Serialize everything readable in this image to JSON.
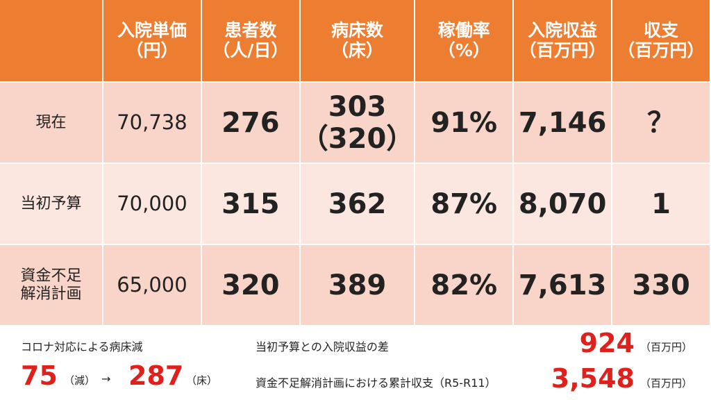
{
  "table": {
    "columns": [
      {
        "name": "入院単価",
        "unit": "（円）"
      },
      {
        "name": "患者数",
        "unit": "（人/日）"
      },
      {
        "name": "病床数",
        "unit": "（床）"
      },
      {
        "name": "稼働率",
        "unit": "（%）"
      },
      {
        "name": "入院収益",
        "unit": "（百万円）"
      },
      {
        "name": "収支",
        "unit": "（百万円）"
      }
    ],
    "rows": [
      {
        "label": [
          "現在"
        ],
        "cells": [
          [
            "70,738"
          ],
          [
            "276"
          ],
          [
            "303",
            "（320）"
          ],
          [
            "91%"
          ],
          [
            "7,146"
          ],
          [
            "？"
          ]
        ]
      },
      {
        "label": [
          "当初予算"
        ],
        "cells": [
          [
            "70,000"
          ],
          [
            "315"
          ],
          [
            "362"
          ],
          [
            "87%"
          ],
          [
            "8,070"
          ],
          [
            "1"
          ]
        ]
      },
      {
        "label": [
          "資金不足",
          "解消計画"
        ],
        "cells": [
          [
            "65,000"
          ],
          [
            "320"
          ],
          [
            "389"
          ],
          [
            "82%"
          ],
          [
            "7,613"
          ],
          [
            "330"
          ]
        ]
      }
    ]
  },
  "notes": {
    "bed_reduction": {
      "title": "コロナ対応による病床減",
      "reduced": "75",
      "reduced_unit": "（減）",
      "arrow": "→",
      "beds": "287",
      "beds_unit": "（床）"
    },
    "revenue_gap": {
      "label": "当初予算との入院収益の差",
      "value": "924",
      "unit": "（百万円）"
    },
    "cumulative": {
      "label": "資金不足解消計画における累計収支（R5-R11）",
      "value": "3,548",
      "unit": "（百万円）"
    }
  }
}
